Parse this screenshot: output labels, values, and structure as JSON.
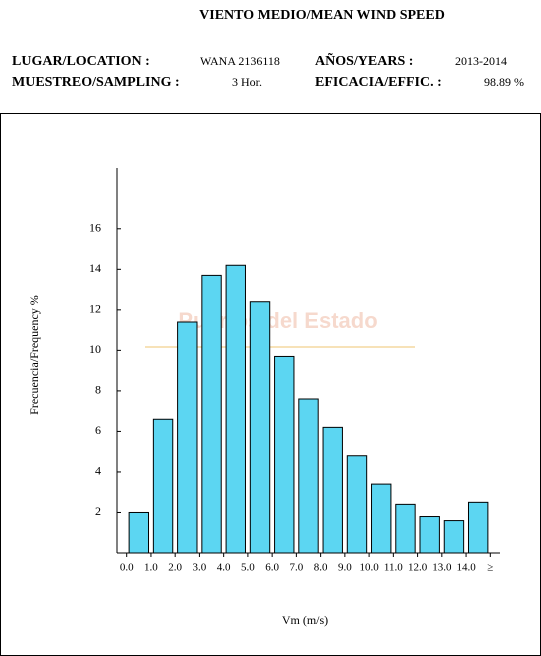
{
  "header": {
    "title": "VIENTO MEDIO/MEAN WIND SPEED",
    "location_label": "LUGAR/LOCATION :",
    "location": "WANA 2136118",
    "years_label": "AÑOS/YEARS :",
    "years": "2013-2014",
    "sampling_label": "MUESTREO/SAMPLING :",
    "sampling": "3 Hor.",
    "efficiency_label": "EFICACIA/EFFIC. :",
    "efficiency": "98.89 %"
  },
  "chart_data": {
    "type": "histogram",
    "watermark": "Puertos del Estado",
    "xlabel": "Vm (m/s)",
    "ylabel": "Frecuencia/Frequency %",
    "bins": [
      0,
      1,
      2,
      3,
      4,
      5,
      6,
      7,
      8,
      9,
      10,
      11,
      12,
      13,
      14,
      15
    ],
    "values": [
      2.0,
      6.6,
      11.4,
      13.7,
      14.2,
      12.4,
      9.7,
      7.6,
      6.2,
      4.8,
      3.4,
      2.4,
      1.8,
      1.6,
      2.5
    ],
    "color": "#5cd6f2",
    "xlim": [
      -0.4,
      15.4
    ],
    "ylim": [
      0,
      19
    ],
    "xticks": [
      {
        "value": 0,
        "label": "0.0"
      },
      {
        "value": 1,
        "label": "1.0"
      },
      {
        "value": 2,
        "label": "2.0"
      },
      {
        "value": 3,
        "label": "3.0"
      },
      {
        "value": 4,
        "label": "4.0"
      },
      {
        "value": 5,
        "label": "5.0"
      },
      {
        "value": 6,
        "label": "6.0"
      },
      {
        "value": 7,
        "label": "7.0"
      },
      {
        "value": 8,
        "label": "8.0"
      },
      {
        "value": 9,
        "label": "9.0"
      },
      {
        "value": 10,
        "label": "10.0"
      },
      {
        "value": 11,
        "label": "11.0"
      },
      {
        "value": 12,
        "label": "12.0"
      },
      {
        "value": 13,
        "label": "13.0"
      },
      {
        "value": 14,
        "label": "14.0"
      },
      {
        "value": 15,
        "label": "≥"
      }
    ],
    "yticks": [
      2,
      4,
      6,
      8,
      10,
      12,
      14,
      16
    ]
  }
}
